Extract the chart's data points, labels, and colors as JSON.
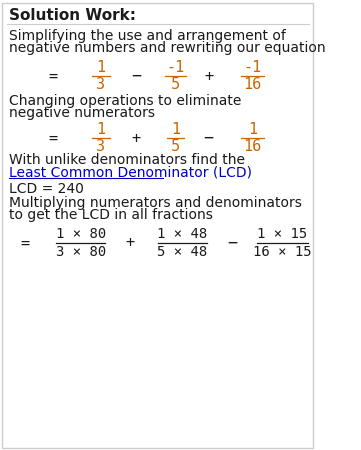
{
  "title": "Solution Work:",
  "bg_color": "#ffffff",
  "border_color": "#cccccc",
  "text_color_dark": "#1a1a1a",
  "text_color_blue": "#0000cc",
  "text_color_orange": "#cc6600",
  "title_fontsize": 11,
  "body_fontsize": 10,
  "math_fontsize": 11,
  "line1": "Simplifying the use and arrangement of",
  "line2": "negative numbers and rewriting our equation",
  "line3": "Changing operations to eliminate",
  "line4": "negative numerators",
  "line5": "With unlike denominators find the",
  "line6": "Least Common Denominator (LCD)",
  "line7": "LCD = 240",
  "line8": "Multiplying numerators and denominators",
  "line9": "to get the LCD in all fractions"
}
